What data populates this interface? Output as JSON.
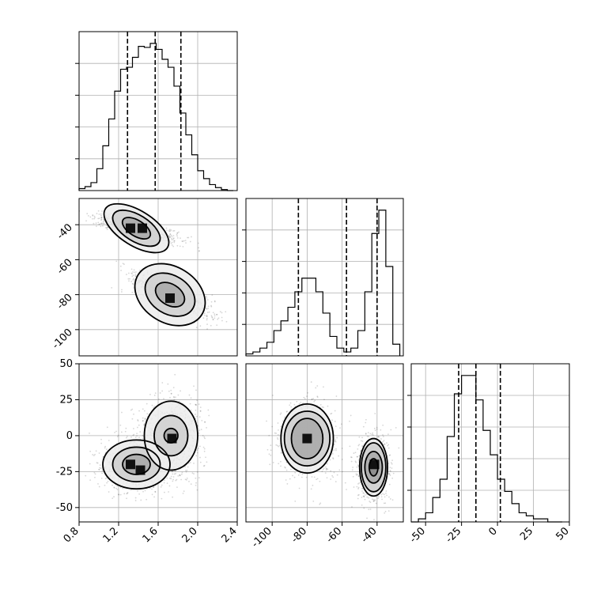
{
  "chart_data": {
    "type": "corner",
    "grid": true,
    "params": [
      {
        "range": [
          0.8,
          2.4
        ],
        "ticks": [
          0.8,
          1.2,
          1.6,
          2.0,
          2.4
        ],
        "tick_labels": [
          "0.8",
          "1.2",
          "1.6",
          "2.0",
          "2.4"
        ],
        "quantiles": [
          1.29,
          1.57,
          1.83
        ],
        "hist": {
          "edges": [
            0.8,
            0.86,
            0.92,
            0.98,
            1.04,
            1.1,
            1.16,
            1.22,
            1.28,
            1.34,
            1.4,
            1.46,
            1.52,
            1.58,
            1.64,
            1.7,
            1.76,
            1.82,
            1.88,
            1.94,
            2.0,
            2.06,
            2.12,
            2.18,
            2.24,
            2.3,
            2.36
          ],
          "counts": [
            2,
            4,
            8,
            22,
            45,
            72,
            100,
            122,
            124,
            134,
            145,
            144,
            148,
            142,
            132,
            124,
            105,
            78,
            56,
            36,
            20,
            12,
            6,
            3,
            1,
            0
          ]
        }
      },
      {
        "range": [
          -115,
          -25
        ],
        "ticks": [
          -100,
          -80,
          -60,
          -40
        ],
        "tick_labels": [
          "-100",
          "-80",
          "-60",
          "-40"
        ],
        "quantiles": [
          -85,
          -57.5,
          -40
        ],
        "hist": {
          "edges": [
            -115,
            -111,
            -107,
            -103,
            -99,
            -95,
            -91,
            -87,
            -83,
            -79,
            -75,
            -71,
            -67,
            -63,
            -59,
            -55,
            -51,
            -47,
            -43,
            -39,
            -35,
            -31,
            -27
          ],
          "counts": [
            1,
            2,
            4,
            7,
            13,
            18,
            25,
            33,
            40,
            40,
            33,
            22,
            10,
            4,
            2,
            4,
            13,
            33,
            63,
            75,
            46,
            6
          ]
        }
      },
      {
        "range": [
          -60,
          50
        ],
        "ticks": [
          -50,
          -25,
          0,
          25,
          50
        ],
        "tick_labels": [
          "-50",
          "-25",
          "0",
          "25",
          "50"
        ],
        "quantiles": [
          -27,
          -15,
          2
        ],
        "hist": {
          "edges": [
            -60,
            -55,
            -50,
            -45,
            -40,
            -35,
            -30,
            -25,
            -20,
            -15,
            -10,
            -5,
            0,
            5,
            10,
            15,
            20,
            25,
            30,
            35,
            40,
            45
          ],
          "counts": [
            0,
            1,
            3,
            8,
            14,
            28,
            42,
            48,
            48,
            40,
            30,
            22,
            14,
            10,
            6,
            3,
            2,
            1,
            1,
            0,
            0
          ]
        }
      }
    ],
    "pairs": [
      {
        "x": 0,
        "y": 1,
        "modes": [
          {
            "center": [
              1.38,
              -42
            ],
            "contours": [
              [
                0.16,
                4.5
              ],
              [
                0.27,
                7.5
              ],
              [
                0.37,
                10
              ]
            ]
          },
          {
            "center": [
              1.72,
              -80
            ],
            "contours": [
              [
                0.16,
                6
              ],
              [
                0.27,
                11
              ],
              [
                0.38,
                16
              ]
            ]
          }
        ],
        "cores": [
          [
            1.32,
            -42
          ],
          [
            1.44,
            -42
          ],
          [
            1.72,
            -82
          ]
        ]
      },
      {
        "x": 0,
        "y": 2,
        "modes": [
          {
            "center": [
              1.38,
              -20
            ],
            "contours": [
              [
                0.14,
                7
              ],
              [
                0.24,
                12
              ],
              [
                0.34,
                17
              ]
            ]
          },
          {
            "center": [
              1.73,
              0
            ],
            "contours": [
              [
                0.07,
                5
              ],
              [
                0.17,
                14
              ],
              [
                0.27,
                24
              ]
            ]
          }
        ],
        "cores": [
          [
            1.32,
            -20
          ],
          [
            1.42,
            -24
          ],
          [
            1.74,
            -2
          ]
        ]
      },
      {
        "x": 1,
        "y": 2,
        "modes": [
          {
            "center": [
              -80,
              -2
            ],
            "contours": [
              [
                9,
                14
              ],
              [
                13,
                19
              ],
              [
                15,
                24
              ]
            ]
          },
          {
            "center": [
              -42,
              -22
            ],
            "contours": [
              [
                2.5,
                6
              ],
              [
                5,
                11
              ],
              [
                7,
                17
              ],
              [
                8,
                20
              ]
            ]
          }
        ],
        "cores": [
          [
            -80,
            -2
          ],
          [
            -41.5,
            -20
          ]
        ]
      }
    ]
  }
}
